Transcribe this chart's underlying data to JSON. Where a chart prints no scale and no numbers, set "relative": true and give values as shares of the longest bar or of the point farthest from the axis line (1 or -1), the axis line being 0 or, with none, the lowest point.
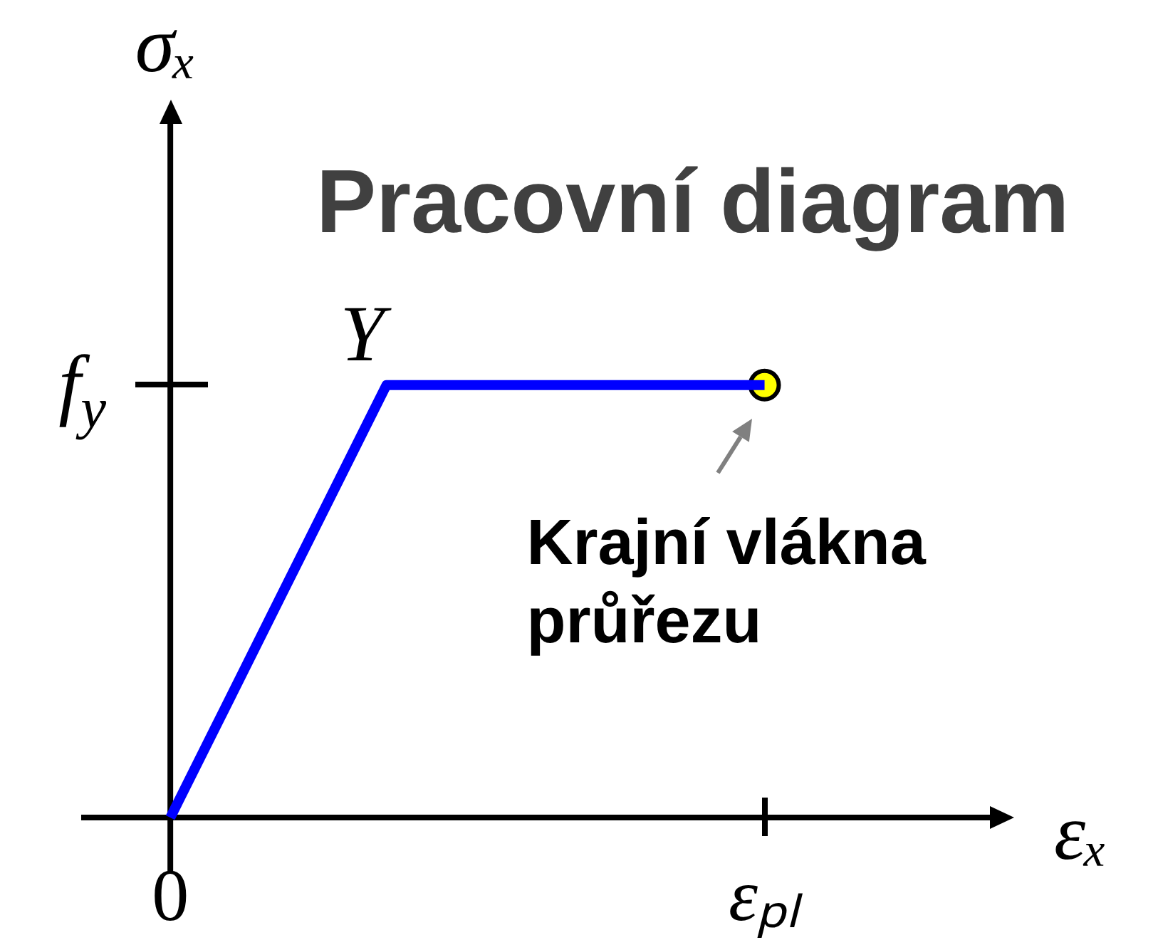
{
  "chart_data": {
    "type": "line",
    "relative": true,
    "title": "Pracovní diagram",
    "xlabel": "εₓ",
    "ylabel": "σₓ",
    "categories": [
      "0",
      null,
      null,
      null,
      null,
      null,
      null,
      null,
      null,
      null,
      null,
      "εₚₗ"
    ],
    "annotations": [
      "f$_{y}$",
      "Y",
      {
        "text": "Krajní vlákna průřezu",
        "x": "εₚₗ",
        "y": 1
      }
    ],
    "series": [
      {
        "color": "#0000ff",
        "values": [
          0,
          0.25,
          0.5,
          0.75,
          1,
          1,
          1,
          1,
          1,
          1,
          1,
          1
        ]
      },
      {
        "type": "scatter",
        "color": "#ffff00",
        "marker": "circle",
        "values": [
          null,
          null,
          null,
          null,
          null,
          null,
          null,
          null,
          null,
          null,
          null,
          1
        ]
      }
    ]
  }
}
